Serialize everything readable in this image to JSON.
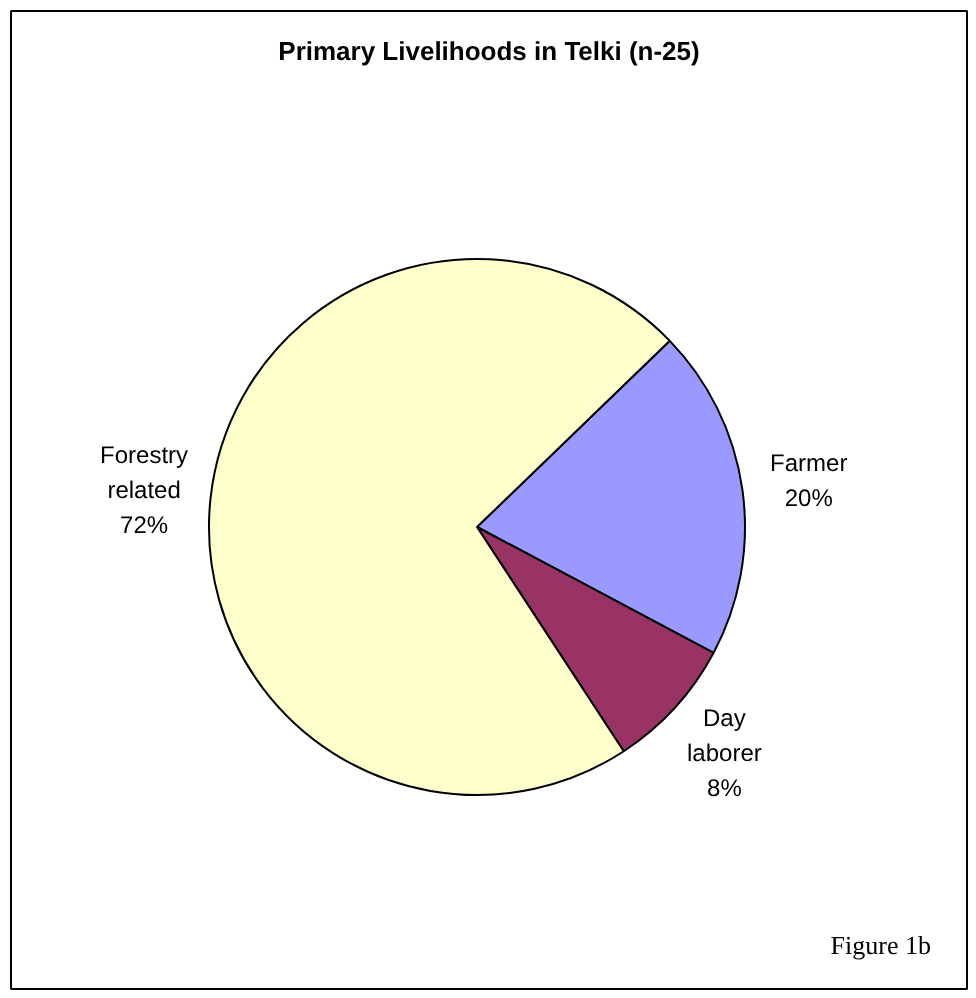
{
  "chart_data": {
    "type": "pie",
    "title": "Primary Livelihoods in Telki (n-25)",
    "categories": [
      "Farmer",
      "Day laborer",
      "Forestry related"
    ],
    "values": [
      20,
      8,
      72
    ],
    "colors": [
      "#9999ff",
      "#993366",
      "#ffffcc"
    ],
    "value_labels": [
      "20%",
      "8%",
      "72%"
    ],
    "annotations": [
      "Figure 1b"
    ]
  }
}
